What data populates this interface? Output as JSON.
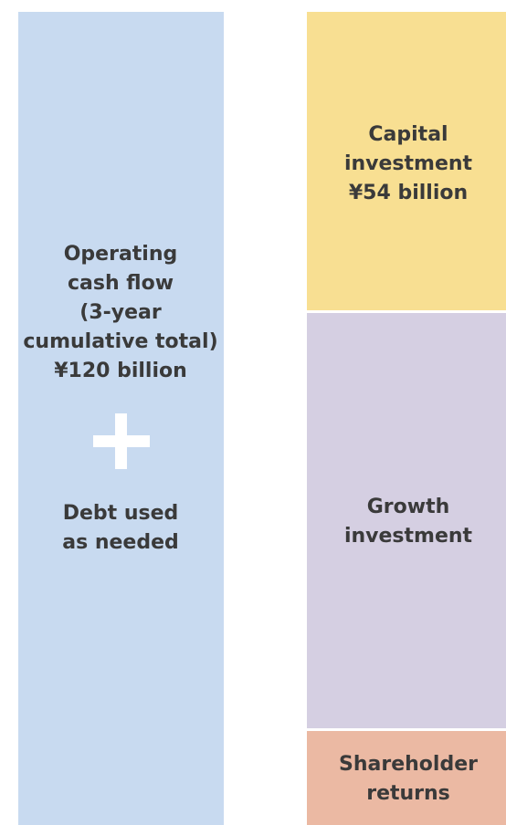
{
  "sources": {
    "main": {
      "lines": [
        "Operating",
        "cash flow",
        "(3-year",
        "cumulative total)",
        "¥120 billion"
      ]
    },
    "additional": {
      "lines": [
        "Debt used",
        "as needed"
      ]
    }
  },
  "uses": [
    {
      "lines": [
        "Capital",
        "investment",
        "¥54 billion"
      ]
    },
    {
      "lines": [
        "Growth",
        "investment"
      ]
    },
    {
      "lines": [
        "Shareholder",
        "returns"
      ]
    }
  ]
}
